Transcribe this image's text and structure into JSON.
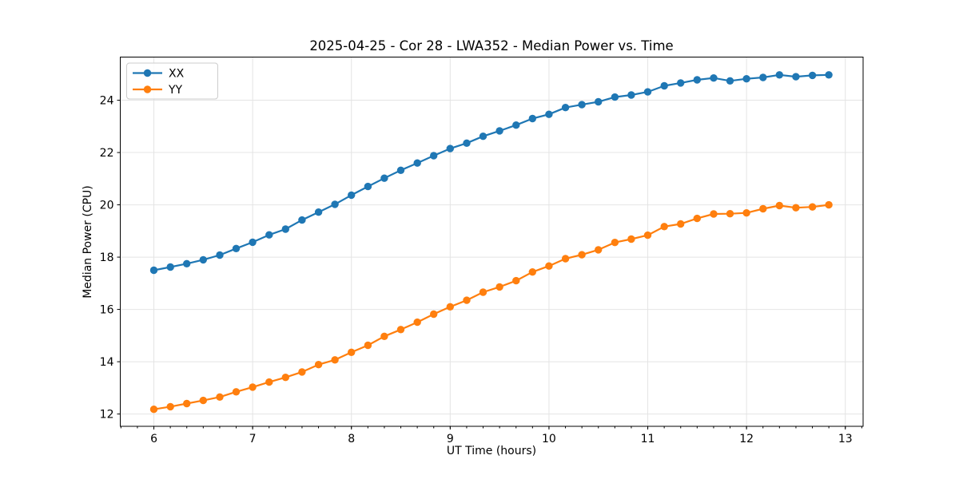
{
  "figure": {
    "title": "2025-04-25 - Cor 28 - LWA352 - Median Power vs. Time",
    "background_color": "#ffffff"
  },
  "chart_data": {
    "type": "line",
    "title": "2025-04-25 - Cor 28 - LWA352 - Median Power vs. Time",
    "xlabel": "UT Time (hours)",
    "ylabel": "Median Power (CPU)",
    "xlim": [
      5.66,
      13.18
    ],
    "ylim": [
      11.53,
      25.65
    ],
    "x_ticks": [
      6,
      7,
      8,
      9,
      10,
      11,
      12,
      13
    ],
    "y_ticks": [
      12,
      14,
      16,
      18,
      20,
      22,
      24
    ],
    "x_minor_tick_step": 0.1666667,
    "grid": true,
    "grid_color": "#e4e4e4",
    "axis_color": "#000000",
    "text_color": "#000000",
    "legend_position": "upper-left",
    "legend_border_color": "#cccccc",
    "marker": "circle",
    "x": [
      6.0,
      6.167,
      6.333,
      6.5,
      6.667,
      6.833,
      7.0,
      7.167,
      7.333,
      7.5,
      7.667,
      7.833,
      8.0,
      8.167,
      8.333,
      8.5,
      8.667,
      8.833,
      9.0,
      9.167,
      9.333,
      9.5,
      9.667,
      9.833,
      10.0,
      10.167,
      10.333,
      10.5,
      10.667,
      10.833,
      11.0,
      11.167,
      11.333,
      11.5,
      11.667,
      11.833,
      12.0,
      12.167,
      12.333,
      12.5,
      12.667,
      12.833
    ],
    "series": [
      {
        "name": "XX",
        "color": "#1f77b4",
        "values": [
          17.5,
          17.62,
          17.75,
          17.9,
          18.08,
          18.33,
          18.57,
          18.85,
          19.07,
          19.42,
          19.72,
          20.02,
          20.37,
          20.7,
          21.02,
          21.32,
          21.6,
          21.88,
          22.15,
          22.36,
          22.62,
          22.83,
          23.05,
          23.3,
          23.46,
          23.72,
          23.83,
          23.94,
          24.12,
          24.2,
          24.32,
          24.55,
          24.66,
          24.78,
          24.85,
          24.74,
          24.82,
          24.87,
          24.97,
          24.9,
          24.95,
          24.97
        ]
      },
      {
        "name": "YY",
        "color": "#ff7f0e",
        "values": [
          12.18,
          12.28,
          12.4,
          12.52,
          12.65,
          12.85,
          13.03,
          13.22,
          13.4,
          13.61,
          13.89,
          14.07,
          14.36,
          14.63,
          14.97,
          15.23,
          15.51,
          15.82,
          16.1,
          16.35,
          16.66,
          16.86,
          17.1,
          17.43,
          17.66,
          17.94,
          18.09,
          18.28,
          18.56,
          18.69,
          18.84,
          19.17,
          19.27,
          19.48,
          19.65,
          19.66,
          19.69,
          19.85,
          19.97,
          19.89,
          19.92,
          20.0
        ]
      }
    ]
  }
}
